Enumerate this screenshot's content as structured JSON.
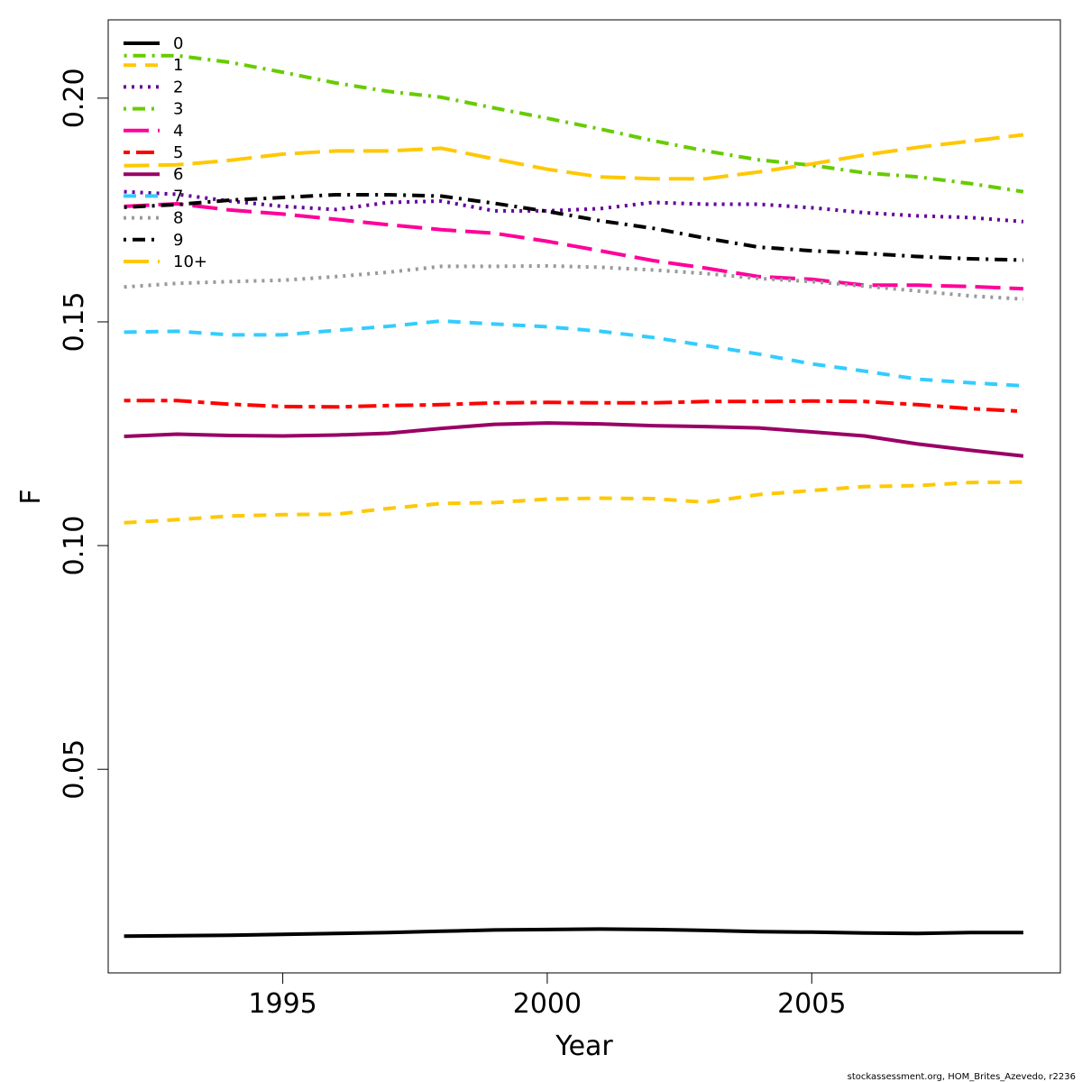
{
  "credit": "stockassessment.org, HOM_Brites_Azevedo, r2236",
  "chart_data": {
    "type": "line",
    "xlabel": "Year",
    "ylabel": "F",
    "xlim": [
      1991.7,
      2009.7
    ],
    "ylim": [
      0.0045,
      0.2175
    ],
    "x_ticks": [
      1995,
      2000,
      2005
    ],
    "y_ticks": [
      0.05,
      0.1,
      0.15,
      0.2
    ],
    "y_tick_labels": [
      "0.05",
      "0.10",
      "0.15",
      "0.20"
    ],
    "grid": false,
    "legend_position": "top-left",
    "x": [
      1992,
      1993,
      1994,
      1995,
      1996,
      1997,
      1998,
      1999,
      2000,
      2001,
      2002,
      2003,
      2004,
      2005,
      2006,
      2007,
      2008,
      2009
    ],
    "series": [
      {
        "name": "0",
        "color": "#000000",
        "dash": "solid",
        "values": [
          0.0127,
          0.0128,
          0.0129,
          0.0131,
          0.0133,
          0.0135,
          0.0138,
          0.0141,
          0.0142,
          0.0143,
          0.0142,
          0.014,
          0.0137,
          0.0136,
          0.0134,
          0.0133,
          0.0135,
          0.0135
        ]
      },
      {
        "name": "1",
        "color": "#FFC800",
        "dash": "dashed",
        "values": [
          0.1051,
          0.1058,
          0.1066,
          0.1069,
          0.107,
          0.1083,
          0.1094,
          0.1096,
          0.1104,
          0.1106,
          0.1105,
          0.1097,
          0.1114,
          0.1123,
          0.1132,
          0.1134,
          0.1141,
          0.1142
        ]
      },
      {
        "name": "2",
        "color": "#660099",
        "dash": "dotted",
        "values": [
          0.1791,
          0.1785,
          0.177,
          0.1758,
          0.1751,
          0.1767,
          0.177,
          0.1748,
          0.1748,
          0.1753,
          0.1767,
          0.1763,
          0.1763,
          0.1755,
          0.1744,
          0.1737,
          0.1733,
          0.1724
        ]
      },
      {
        "name": "3",
        "color": "#66CC00",
        "dash": "dotdash",
        "values": [
          0.2095,
          0.2095,
          0.208,
          0.2058,
          0.2034,
          0.2015,
          0.2002,
          0.1978,
          0.1955,
          0.1931,
          0.1905,
          0.1882,
          0.1862,
          0.185,
          0.1833,
          0.1824,
          0.1809,
          0.1791
        ]
      },
      {
        "name": "4",
        "color": "#FF0099",
        "dash": "longdash",
        "values": [
          0.1758,
          0.1764,
          0.175,
          0.1741,
          0.1729,
          0.1717,
          0.1706,
          0.1698,
          0.168,
          0.1659,
          0.1637,
          0.162,
          0.1601,
          0.1595,
          0.1582,
          0.1582,
          0.1579,
          0.1574
        ]
      },
      {
        "name": "5",
        "color": "#FF0000",
        "dash": "twodash",
        "values": [
          0.1324,
          0.1324,
          0.1316,
          0.1311,
          0.131,
          0.1313,
          0.1315,
          0.1319,
          0.132,
          0.1319,
          0.1319,
          0.1322,
          0.1322,
          0.1323,
          0.1322,
          0.1315,
          0.1306,
          0.13
        ]
      },
      {
        "name": "6",
        "color": "#990066",
        "dash": "solid",
        "values": [
          0.1244,
          0.1249,
          0.1246,
          0.1245,
          0.1247,
          0.1251,
          0.1262,
          0.1271,
          0.1274,
          0.1272,
          0.1268,
          0.1266,
          0.1263,
          0.1254,
          0.1245,
          0.1227,
          0.1213,
          0.12
        ]
      },
      {
        "name": "7",
        "color": "#33CCFF",
        "dash": "dashed",
        "values": [
          0.1477,
          0.1479,
          0.1471,
          0.1471,
          0.1481,
          0.149,
          0.1502,
          0.1495,
          0.1489,
          0.1479,
          0.1465,
          0.1447,
          0.1428,
          0.1406,
          0.139,
          0.1372,
          0.1364,
          0.1357
        ]
      },
      {
        "name": "8",
        "color": "#999999",
        "dash": "dotted",
        "values": [
          0.1578,
          0.1586,
          0.159,
          0.1593,
          0.1601,
          0.1611,
          0.1624,
          0.1624,
          0.1625,
          0.1622,
          0.1616,
          0.1608,
          0.1597,
          0.159,
          0.158,
          0.1569,
          0.1558,
          0.1551
        ]
      },
      {
        "name": "9",
        "color": "#000000",
        "dash": "dotdash",
        "values": [
          0.1756,
          0.1762,
          0.1772,
          0.1778,
          0.1784,
          0.1784,
          0.1781,
          0.1765,
          0.1747,
          0.1726,
          0.1709,
          0.1687,
          0.1667,
          0.1659,
          0.1653,
          0.1646,
          0.1641,
          0.1638
        ]
      },
      {
        "name": "10+",
        "color": "#FFC800",
        "dash": "longdash",
        "values": [
          0.1849,
          0.1851,
          0.1861,
          0.1875,
          0.1882,
          0.1882,
          0.1888,
          0.1864,
          0.1841,
          0.1824,
          0.182,
          0.182,
          0.1835,
          0.1853,
          0.1873,
          0.189,
          0.1904,
          0.1918
        ]
      }
    ]
  }
}
